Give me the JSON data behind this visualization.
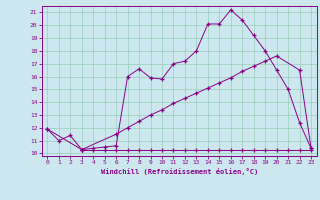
{
  "xlabel": "Windchill (Refroidissement éolien,°C)",
  "bg_color": "#cce8ee",
  "line_color": "#880088",
  "grid_color": "#99ccbb",
  "xlim_min": -0.5,
  "xlim_max": 23.5,
  "ylim_min": 9.8,
  "ylim_max": 21.5,
  "yticks": [
    10,
    11,
    12,
    13,
    14,
    15,
    16,
    17,
    18,
    19,
    20,
    21
  ],
  "xticks": [
    0,
    1,
    2,
    3,
    4,
    5,
    6,
    7,
    8,
    9,
    10,
    11,
    12,
    13,
    14,
    15,
    16,
    17,
    18,
    19,
    20,
    21,
    22,
    23
  ],
  "curve1_x": [
    0,
    1,
    2,
    3,
    4,
    5,
    6,
    7,
    8,
    9,
    10,
    11,
    12,
    13,
    14,
    15,
    16,
    17,
    18,
    19,
    20,
    21,
    22,
    23
  ],
  "curve1_y": [
    11.9,
    11.0,
    11.4,
    10.3,
    10.4,
    10.5,
    10.6,
    16.0,
    16.6,
    15.9,
    15.8,
    17.0,
    17.2,
    18.0,
    20.1,
    20.1,
    21.2,
    20.4,
    19.2,
    18.0,
    16.5,
    15.0,
    12.4,
    10.4
  ],
  "curve2_x": [
    0,
    3,
    6,
    7,
    8,
    9,
    10,
    11,
    12,
    13,
    14,
    15,
    16,
    17,
    18,
    19,
    20,
    22,
    23
  ],
  "curve2_y": [
    11.9,
    10.3,
    11.5,
    12.0,
    12.5,
    13.0,
    13.4,
    13.9,
    14.3,
    14.7,
    15.1,
    15.5,
    15.9,
    16.4,
    16.8,
    17.2,
    17.6,
    16.5,
    10.4
  ],
  "curve3_x": [
    3,
    4,
    5,
    6,
    7,
    8,
    9,
    10,
    11,
    12,
    13,
    14,
    15,
    16,
    17,
    18,
    19,
    20,
    21,
    22,
    23
  ],
  "curve3_y": [
    10.3,
    10.3,
    10.3,
    10.3,
    10.3,
    10.3,
    10.3,
    10.3,
    10.3,
    10.3,
    10.3,
    10.3,
    10.3,
    10.3,
    10.3,
    10.3,
    10.3,
    10.3,
    10.3,
    10.3,
    10.3
  ]
}
